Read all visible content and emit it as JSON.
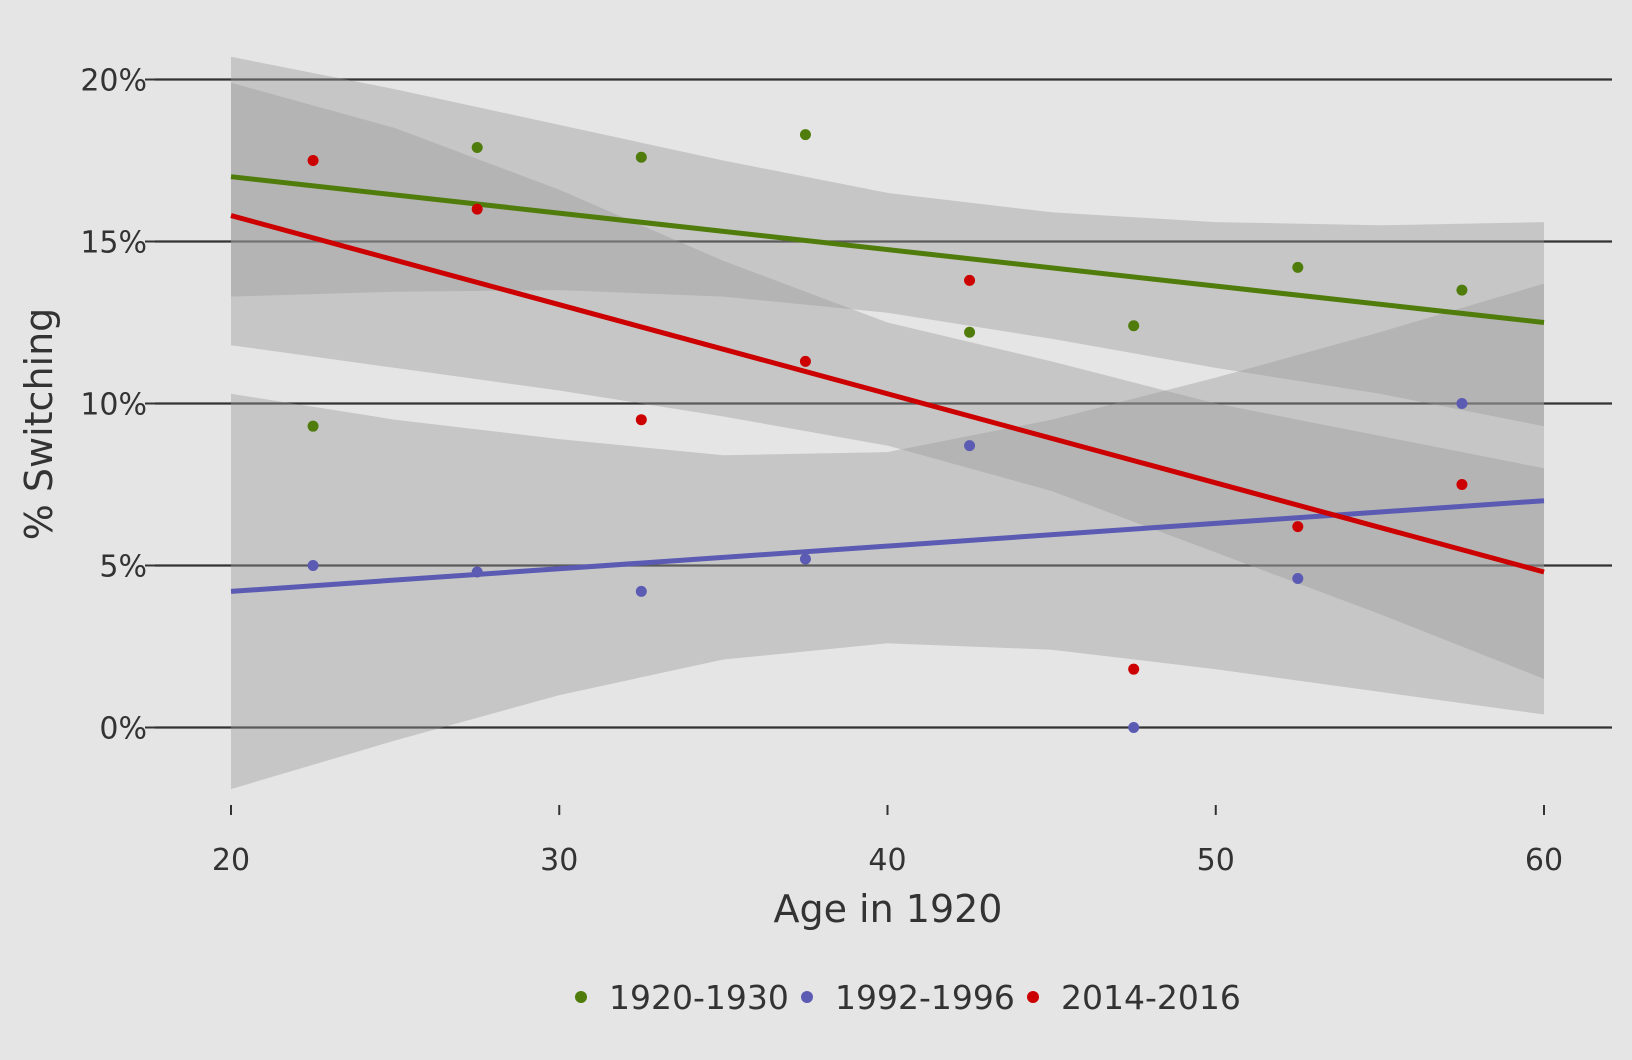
{
  "chart_data": {
    "type": "scatter",
    "title": "",
    "xlabel": "Age in 1920",
    "ylabel": "% Switching",
    "xlim": [
      18,
      62
    ],
    "ylim": [
      -2.7,
      21.7
    ],
    "x_ticks": [
      20,
      30,
      40,
      50,
      60
    ],
    "x_tick_labels": [
      "20",
      "30",
      "40",
      "50",
      "60"
    ],
    "y_ticks": [
      0,
      5,
      10,
      15,
      20
    ],
    "y_tick_labels": [
      "0%",
      "5%",
      "10%",
      "15%",
      "20%"
    ],
    "grid": "horizontal major lines",
    "legend_position": "bottom",
    "series": [
      {
        "name": "1920-1930",
        "color": "#4f7c0b",
        "x": [
          22.5,
          27.5,
          32.5,
          37.5,
          42.5,
          47.5,
          52.5,
          57.5
        ],
        "y": [
          9.3,
          17.9,
          17.6,
          18.3,
          12.2,
          12.4,
          14.2,
          13.5
        ],
        "trend": {
          "x": [
            20,
            60
          ],
          "y": [
            17.0,
            12.5
          ]
        },
        "band": {
          "x": [
            20,
            25,
            30,
            35,
            40,
            45,
            50,
            55,
            60
          ],
          "lower": [
            13.3,
            13.45,
            13.5,
            13.3,
            12.8,
            12.0,
            11.1,
            10.3,
            9.3
          ],
          "upper": [
            20.7,
            19.7,
            18.6,
            17.5,
            16.5,
            15.9,
            15.6,
            15.5,
            15.6
          ]
        }
      },
      {
        "name": "1992-1996",
        "color": "#5b5bb3",
        "x": [
          22.5,
          27.5,
          32.5,
          37.5,
          42.5,
          47.5,
          52.5,
          57.5
        ],
        "y": [
          5.0,
          4.8,
          4.2,
          5.2,
          8.7,
          0.0,
          4.6,
          10.0
        ],
        "trend": {
          "x": [
            20,
            60
          ],
          "y": [
            4.2,
            7.0
          ]
        },
        "band": {
          "x": [
            20,
            25,
            30,
            35,
            40,
            45,
            50,
            55,
            60
          ],
          "lower": [
            -1.9,
            -0.4,
            1.0,
            2.1,
            2.6,
            2.4,
            1.8,
            1.1,
            0.4
          ],
          "upper": [
            10.3,
            9.5,
            8.9,
            8.4,
            8.5,
            9.5,
            10.8,
            12.2,
            13.7
          ]
        }
      },
      {
        "name": "2014-2016",
        "color": "#cc0000",
        "x": [
          22.5,
          27.5,
          32.5,
          37.5,
          42.5,
          47.5,
          52.5,
          57.5
        ],
        "y": [
          17.5,
          16.0,
          9.5,
          11.3,
          13.8,
          1.8,
          6.2,
          7.5
        ],
        "trend": {
          "x": [
            20,
            60
          ],
          "y": [
            15.8,
            4.8
          ]
        },
        "band": {
          "x": [
            20,
            25,
            30,
            35,
            40,
            45,
            50,
            55,
            60
          ],
          "lower": [
            11.8,
            11.1,
            10.4,
            9.6,
            8.7,
            7.3,
            5.4,
            3.5,
            1.5
          ],
          "upper": [
            19.9,
            18.5,
            16.6,
            14.4,
            12.5,
            11.3,
            10.0,
            9.0,
            8.0
          ]
        }
      }
    ]
  }
}
